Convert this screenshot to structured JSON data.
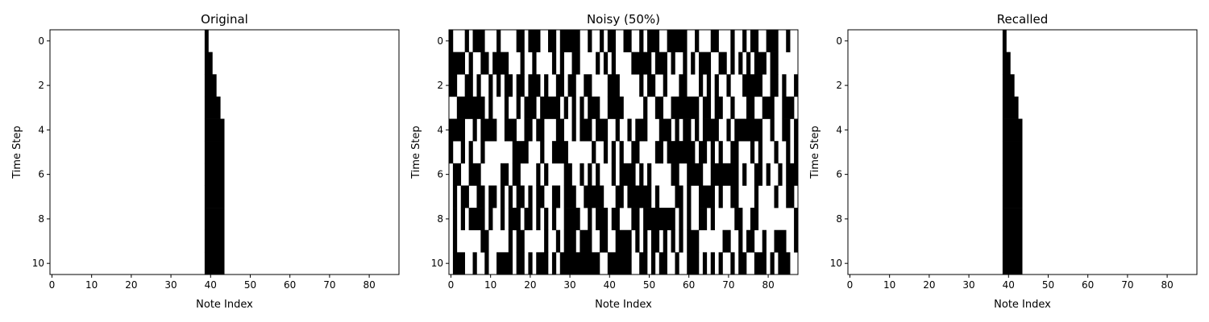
{
  "chart_data": [
    {
      "type": "heatmap",
      "title": "Original",
      "xlabel": "Note Index",
      "ylabel": "Time Step",
      "xlim": [
        -0.5,
        87.5
      ],
      "ylim": [
        10.5,
        -0.5
      ],
      "xticks": [
        0,
        10,
        20,
        30,
        40,
        50,
        60,
        70,
        80
      ],
      "yticks": [
        0,
        2,
        4,
        6,
        8,
        10
      ],
      "cmap": "binary",
      "rows": [
        [
          39,
          39
        ],
        [
          39,
          40
        ],
        [
          39,
          41
        ],
        [
          39,
          42
        ],
        [
          39,
          43
        ],
        [
          39,
          43
        ],
        [
          39,
          43
        ],
        [
          39,
          43
        ],
        [
          39,
          43
        ],
        [
          39,
          43
        ],
        [
          39,
          43
        ]
      ]
    },
    {
      "type": "heatmap",
      "title": "Noisy (50%)",
      "xlabel": "Note Index",
      "ylabel": "Time Step",
      "xlim": [
        -0.5,
        87.5
      ],
      "ylim": [
        10.5,
        -0.5
      ],
      "xticks": [
        0,
        10,
        20,
        30,
        40,
        50,
        60,
        70,
        80
      ],
      "yticks": [
        0,
        2,
        4,
        6,
        8,
        10
      ],
      "cmap": "binary",
      "noise_fraction": 0.5,
      "noise_seed": 7
    },
    {
      "type": "heatmap",
      "title": "Recalled",
      "xlabel": "Note Index",
      "ylabel": "Time Step",
      "xlim": [
        -0.5,
        87.5
      ],
      "ylim": [
        10.5,
        -0.5
      ],
      "xticks": [
        0,
        10,
        20,
        30,
        40,
        50,
        60,
        70,
        80
      ],
      "yticks": [
        0,
        2,
        4,
        6,
        8,
        10
      ],
      "cmap": "binary",
      "rows": [
        [
          39,
          39
        ],
        [
          39,
          40
        ],
        [
          39,
          41
        ],
        [
          39,
          42
        ],
        [
          39,
          43
        ],
        [
          39,
          43
        ],
        [
          39,
          43
        ],
        [
          39,
          43
        ],
        [
          39,
          43
        ],
        [
          39,
          43
        ],
        [
          39,
          43
        ]
      ]
    }
  ],
  "colors": {
    "on": "#000000",
    "off": "#ffffff",
    "axis": "#000000"
  }
}
